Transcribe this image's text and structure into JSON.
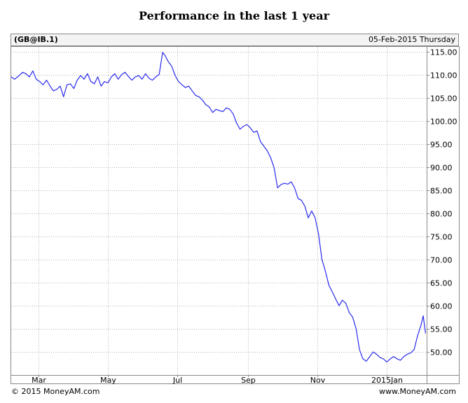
{
  "title": "Performance in the last 1 year",
  "header": {
    "symbol": "(GB@IB.1)",
    "date": "05-Feb-2015 Thursday"
  },
  "footer": {
    "copyright": "© 2015 MoneyAM.com",
    "site": "www.MoneyAM.com"
  },
  "colors": {
    "line": "#2a2aee",
    "grid": "#b4b4b4",
    "frame": "#888888"
  },
  "chart_data": {
    "type": "line",
    "title": "Performance in the last 1 year",
    "xlabel": "",
    "ylabel": "",
    "grid": true,
    "ylim": [
      45.0,
      116.0
    ],
    "yticks": [
      50,
      55,
      60,
      65,
      70,
      75,
      80,
      85,
      90,
      95,
      100,
      105,
      110,
      115
    ],
    "ytick_labels": [
      "50.00",
      "55.00",
      "60.00",
      "65.00",
      "70.00",
      "75.00",
      "80.00",
      "85.00",
      "90.00",
      "95.00",
      "100.00",
      "105.00",
      "110.00",
      "115.00"
    ],
    "xticks": [
      "2014-03-01",
      "2014-05-01",
      "2014-07-01",
      "2014-09-01",
      "2014-11-01",
      "2015-01-01"
    ],
    "xtick_labels": [
      "Mar",
      "May",
      "Jul",
      "Sep",
      "Nov",
      "2015Jan"
    ],
    "xlim": [
      "2014-02-05",
      "2015-02-05"
    ],
    "series": [
      {
        "x": [
          "2014-02-05",
          "2014-02-08",
          "2014-02-12",
          "2014-02-15",
          "2014-02-18",
          "2014-02-21",
          "2014-02-24",
          "2014-02-27",
          "2014-03-02",
          "2014-03-05",
          "2014-03-08",
          "2014-03-11",
          "2014-03-14",
          "2014-03-17",
          "2014-03-20",
          "2014-03-23",
          "2014-03-26",
          "2014-03-29",
          "2014-04-01",
          "2014-04-04",
          "2014-04-07",
          "2014-04-10",
          "2014-04-13",
          "2014-04-16",
          "2014-04-19",
          "2014-04-22",
          "2014-04-25",
          "2014-04-28",
          "2014-05-01",
          "2014-05-04",
          "2014-05-07",
          "2014-05-10",
          "2014-05-13",
          "2014-05-16",
          "2014-05-19",
          "2014-05-22",
          "2014-05-25",
          "2014-05-28",
          "2014-05-31",
          "2014-06-03",
          "2014-06-06",
          "2014-06-09",
          "2014-06-12",
          "2014-06-15",
          "2014-06-18",
          "2014-06-20",
          "2014-06-23",
          "2014-06-26",
          "2014-06-29",
          "2014-07-02",
          "2014-07-05",
          "2014-07-08",
          "2014-07-11",
          "2014-07-14",
          "2014-07-17",
          "2014-07-20",
          "2014-07-23",
          "2014-07-26",
          "2014-07-29",
          "2014-08-01",
          "2014-08-04",
          "2014-08-07",
          "2014-08-10",
          "2014-08-13",
          "2014-08-16",
          "2014-08-19",
          "2014-08-22",
          "2014-08-25",
          "2014-08-28",
          "2014-08-31",
          "2014-09-03",
          "2014-09-06",
          "2014-09-09",
          "2014-09-12",
          "2014-09-15",
          "2014-09-18",
          "2014-09-21",
          "2014-09-24",
          "2014-09-27",
          "2014-09-30",
          "2014-10-03",
          "2014-10-06",
          "2014-10-09",
          "2014-10-12",
          "2014-10-15",
          "2014-10-18",
          "2014-10-21",
          "2014-10-24",
          "2014-10-27",
          "2014-10-30",
          "2014-11-02",
          "2014-11-05",
          "2014-11-08",
          "2014-11-11",
          "2014-11-14",
          "2014-11-17",
          "2014-11-20",
          "2014-11-23",
          "2014-11-26",
          "2014-11-29",
          "2014-12-02",
          "2014-12-05",
          "2014-12-08",
          "2014-12-11",
          "2014-12-14",
          "2014-12-17",
          "2014-12-20",
          "2014-12-23",
          "2014-12-26",
          "2014-12-29",
          "2015-01-01",
          "2015-01-04",
          "2015-01-07",
          "2015-01-10",
          "2015-01-13",
          "2015-01-16",
          "2015-01-19",
          "2015-01-22",
          "2015-01-25",
          "2015-01-28",
          "2015-01-31",
          "2015-02-02",
          "2015-02-04"
        ],
        "y": [
          109.5,
          109.0,
          109.8,
          110.5,
          110.2,
          109.5,
          110.8,
          109.0,
          108.5,
          107.8,
          108.8,
          107.6,
          106.5,
          106.8,
          107.5,
          105.2,
          107.8,
          108.0,
          107.0,
          108.8,
          109.8,
          109.0,
          110.2,
          108.5,
          108.0,
          109.5,
          107.5,
          108.5,
          108.2,
          109.5,
          110.2,
          109.0,
          110.0,
          110.5,
          109.6,
          108.8,
          109.5,
          109.8,
          109.0,
          110.2,
          109.2,
          108.8,
          109.5,
          110.0,
          114.8,
          114.2,
          112.8,
          111.8,
          109.8,
          108.5,
          107.8,
          107.2,
          107.5,
          106.5,
          105.5,
          105.2,
          104.5,
          103.5,
          103.0,
          101.8,
          102.5,
          102.2,
          102.0,
          102.8,
          102.5,
          101.5,
          99.5,
          98.2,
          98.8,
          99.2,
          98.5,
          97.5,
          97.8,
          95.5,
          94.5,
          93.5,
          92.0,
          89.8,
          85.5,
          86.2,
          86.5,
          86.3,
          86.8,
          85.5,
          83.2,
          82.8,
          81.5,
          79.0,
          80.5,
          79.0,
          75.5,
          70.0,
          67.5,
          64.5,
          63.0,
          61.5,
          60.0,
          61.2,
          60.5,
          58.5,
          57.5,
          55.0,
          50.5,
          48.5,
          48.0,
          49.0,
          50.0,
          49.5,
          48.8,
          48.5,
          47.8,
          48.5,
          49.0,
          48.5,
          48.2,
          49.0,
          49.5,
          49.8,
          50.5,
          53.5,
          55.8,
          57.8,
          54.0
        ]
      }
    ]
  }
}
